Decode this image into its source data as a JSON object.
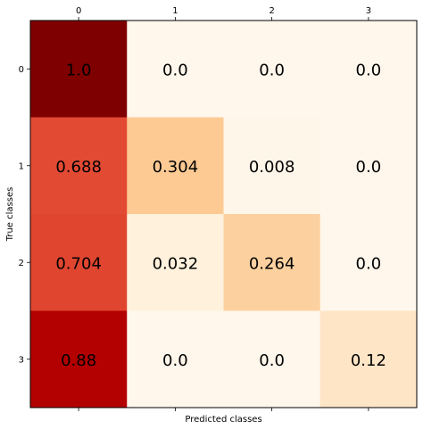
{
  "chart_data": {
    "type": "heatmap",
    "title": "",
    "xlabel": "Predicted classes",
    "ylabel": "True classes",
    "x_categories": [
      "0",
      "1",
      "2",
      "3"
    ],
    "y_categories": [
      "0",
      "1",
      "2",
      "3"
    ],
    "x_tick_position": "top",
    "colormap": "OrRd",
    "values": [
      [
        1.0,
        0.0,
        0.0,
        0.0
      ],
      [
        0.688,
        0.304,
        0.008,
        0.0
      ],
      [
        0.704,
        0.032,
        0.264,
        0.0
      ],
      [
        0.88,
        0.0,
        0.0,
        0.12
      ]
    ],
    "cell_labels": [
      [
        "1.0",
        "0.0",
        "0.0",
        "0.0"
      ],
      [
        "0.688",
        "0.304",
        "0.008",
        "0.0"
      ],
      [
        "0.704",
        "0.032",
        "0.264",
        "0.0"
      ],
      [
        "0.88",
        "0.0",
        "0.0",
        "0.12"
      ]
    ],
    "cell_colors": [
      [
        "#7f0000",
        "#fff7ec",
        "#fff7ec",
        "#fff7ec"
      ],
      [
        "#e34a33",
        "#fdca94",
        "#fff6ea",
        "#fff7ec"
      ],
      [
        "#e0452f",
        "#fff1dc",
        "#fdd19f",
        "#fff7ec"
      ],
      [
        "#b30000",
        "#fff7ec",
        "#fff7ec",
        "#fee5c6"
      ]
    ],
    "grid": false,
    "legend": "none"
  }
}
